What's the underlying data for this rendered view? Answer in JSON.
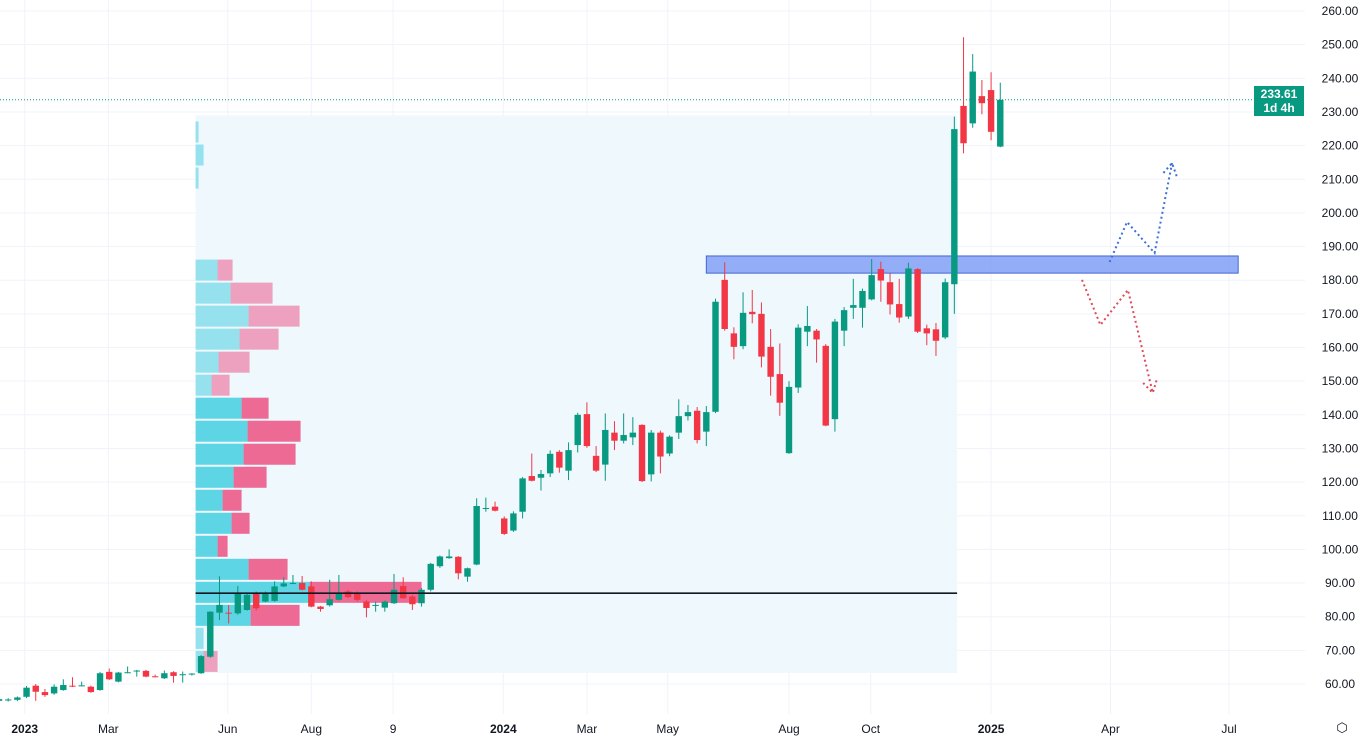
{
  "colors": {
    "up": "#089981",
    "down": "#f23645",
    "zone": "#8fa9f7",
    "profile_up": "#4dd0e1",
    "profile_down": "#ec5a8a",
    "region_bg": "#eef8fd",
    "projection_up": "#3d6fd8",
    "projection_down": "#e04a5a"
  },
  "price_badge": {
    "price": "233.61",
    "countdown": "1d 4h"
  },
  "settings_icon": "gear-hexagon-icon",
  "chart_data": {
    "type": "candlestick",
    "interval": "1W",
    "ylim": [
      60,
      260
    ],
    "y_ticks": [
      "60.00",
      "70.00",
      "80.00",
      "90.00",
      "100.00",
      "110.00",
      "120.00",
      "130.00",
      "140.00",
      "150.00",
      "160.00",
      "170.00",
      "180.00",
      "190.00",
      "200.00",
      "210.00",
      "220.00",
      "230.00",
      "240.00",
      "250.00",
      "260.00"
    ],
    "x_ticks": [
      {
        "label": "2023",
        "index": 2.8,
        "bold": true
      },
      {
        "label": "Mar",
        "index": 11.9
      },
      {
        "label": "Jun",
        "index": 24.9
      },
      {
        "label": "Aug",
        "index": 34
      },
      {
        "label": "9",
        "index": 42.9
      },
      {
        "label": "2024",
        "index": 54.9,
        "bold": true
      },
      {
        "label": "Mar",
        "index": 64
      },
      {
        "label": "May",
        "index": 72.8
      },
      {
        "label": "Aug",
        "index": 86
      },
      {
        "label": "Oct",
        "index": 94.9
      },
      {
        "label": "2025",
        "index": 108,
        "bold": true
      },
      {
        "label": "Apr",
        "index": 121
      },
      {
        "label": "Jul",
        "index": 133.9
      }
    ],
    "candles_ohlc": [
      [
        55,
        56,
        54.5,
        55.5
      ],
      [
        55.4,
        55.8,
        54.8,
        55.4
      ],
      [
        55.3,
        56.3,
        54.9,
        56
      ],
      [
        56.2,
        59.4,
        55.8,
        58.9
      ],
      [
        59.5,
        60,
        55,
        57.7
      ],
      [
        57.6,
        58.5,
        56.2,
        56.7
      ],
      [
        57.2,
        59.9,
        56.8,
        59.2
      ],
      [
        58.2,
        61.4,
        58,
        59.7
      ],
      [
        59.5,
        62,
        59.1,
        59.3
      ],
      [
        59.6,
        60.7,
        59.3,
        59.6
      ],
      [
        59.2,
        59.5,
        57.4,
        57.6
      ],
      [
        58.2,
        63.6,
        58,
        63.2
      ],
      [
        63.6,
        64.6,
        61.2,
        61.4
      ],
      [
        60.7,
        63.6,
        60.5,
        63.4
      ],
      [
        63.4,
        65.2,
        63.2,
        63.5
      ],
      [
        64,
        64.2,
        62.2,
        64
      ],
      [
        63.9,
        64.2,
        62,
        62.2
      ],
      [
        62.3,
        62.8,
        62,
        62.2
      ],
      [
        61.7,
        64,
        61.5,
        63.2
      ],
      [
        63.5,
        63.8,
        60.4,
        62.4
      ],
      [
        62.8,
        63.7,
        60.4,
        62.9
      ],
      [
        63,
        63.2,
        62.5,
        63.1
      ],
      [
        63.2,
        68.6,
        63,
        68.3
      ],
      [
        68.1,
        81.6,
        67.8,
        81.5
      ],
      [
        81.2,
        92,
        79,
        83.5
      ],
      [
        81.2,
        83.5,
        78,
        81
      ],
      [
        81,
        89.1,
        80.6,
        87
      ],
      [
        82,
        87,
        81.8,
        86.5
      ],
      [
        87,
        87.5,
        81.8,
        82.5
      ],
      [
        84.5,
        87.5,
        84.3,
        87
      ],
      [
        84.7,
        90.5,
        84.5,
        89
      ],
      [
        89,
        91.7,
        88.8,
        89.9
      ],
      [
        89.9,
        92.4,
        89.7,
        90
      ],
      [
        90,
        92.1,
        87.8,
        88
      ],
      [
        89,
        90.5,
        82.8,
        83
      ],
      [
        83,
        83.2,
        81.5,
        82.3
      ],
      [
        83.4,
        91,
        83,
        85.2
      ],
      [
        85,
        92.4,
        84.8,
        87
      ],
      [
        87.5,
        88,
        85.5,
        85.8
      ],
      [
        87,
        87.5,
        84.5,
        85
      ],
      [
        84.5,
        85,
        79.8,
        82.6
      ],
      [
        83.5,
        84.5,
        81.5,
        83.5
      ],
      [
        82.7,
        84.8,
        81.5,
        84.5
      ],
      [
        84,
        92.7,
        83.8,
        88
      ],
      [
        89.1,
        91.7,
        85.3,
        85.5
      ],
      [
        86,
        86.5,
        82,
        83.7
      ],
      [
        84,
        88.5,
        83,
        88
      ],
      [
        88,
        96,
        87.5,
        95.7
      ],
      [
        95,
        98.2,
        94.5,
        97.9
      ],
      [
        97.4,
        100,
        97.2,
        97.9
      ],
      [
        97.8,
        98,
        91.1,
        92.9
      ],
      [
        91.9,
        94.6,
        90.4,
        94.4
      ],
      [
        95.5,
        115.2,
        95.3,
        112.9
      ],
      [
        112.2,
        115.4,
        111.2,
        112.3
      ],
      [
        112.7,
        114.2,
        111.3,
        111.5
      ],
      [
        109.2,
        109.8,
        104.3,
        104.6
      ],
      [
        105.6,
        111.3,
        105.2,
        110.7
      ],
      [
        111.2,
        121.5,
        109.2,
        121.1
      ],
      [
        121.8,
        128.5,
        120.2,
        120.4
      ],
      [
        121.3,
        123.6,
        117.5,
        122.4
      ],
      [
        122.6,
        129.4,
        121.5,
        128.4
      ],
      [
        129,
        129.5,
        122.8,
        124.3
      ],
      [
        123.4,
        131.8,
        120.6,
        129.5
      ],
      [
        131,
        140.6,
        128.8,
        140
      ],
      [
        140.2,
        143.7,
        130.2,
        130.7
      ],
      [
        127.8,
        130.7,
        123,
        123.4
      ],
      [
        125.2,
        140.4,
        120.4,
        135.5
      ],
      [
        134.7,
        138.1,
        129.5,
        132.3
      ],
      [
        132.3,
        140.4,
        131.5,
        134
      ],
      [
        133.3,
        139.3,
        131,
        134.7
      ],
      [
        137,
        137.2,
        120,
        120.3
      ],
      [
        122.3,
        135.5,
        120.2,
        134.7
      ],
      [
        134.7,
        135.3,
        122.6,
        127.6
      ],
      [
        128.5,
        133.9,
        127.7,
        133.5
      ],
      [
        134.7,
        144.6,
        132.8,
        139.6
      ],
      [
        139.6,
        142.9,
        138.3,
        140.8
      ],
      [
        141.2,
        142.3,
        131.5,
        132.5
      ],
      [
        135,
        142.6,
        130.7,
        140.8
      ],
      [
        140.9,
        174.5,
        140.5,
        173.6
      ],
      [
        180.1,
        185.3,
        165,
        165.5
      ],
      [
        164.2,
        166,
        156.5,
        160.2
      ],
      [
        160.4,
        176.4,
        159.5,
        170.3
      ],
      [
        170.6,
        177.1,
        167.2,
        169.9
      ],
      [
        170,
        173.4,
        154.1,
        157.3
      ],
      [
        160.2,
        165.5,
        145.7,
        151.3
      ],
      [
        152.1,
        161.2,
        139.7,
        143.6
      ],
      [
        128.6,
        150,
        128.4,
        148.3
      ],
      [
        148.1,
        166.9,
        146.5,
        165.9
      ],
      [
        164.7,
        172.3,
        160.4,
        166.4
      ],
      [
        165,
        165.5,
        155.5,
        162.4
      ],
      [
        160.5,
        161,
        136.6,
        136.8
      ],
      [
        138.7,
        168.5,
        135,
        167.7
      ],
      [
        165,
        172,
        160.4,
        171.1
      ],
      [
        171.8,
        180.4,
        168.5,
        172.6
      ],
      [
        171.8,
        177.5,
        165.9,
        176.8
      ],
      [
        174.3,
        186.3,
        174,
        181.5
      ],
      [
        183.3,
        185.5,
        173.6,
        179.9
      ],
      [
        179.4,
        182,
        169.8,
        172.8
      ],
      [
        172.9,
        180.4,
        167.4,
        168.9
      ],
      [
        169.2,
        185.2,
        168.5,
        183.5
      ],
      [
        183.3,
        183.6,
        164.3,
        164.7
      ],
      [
        165.7,
        166.8,
        160.7,
        164.2
      ],
      [
        165.4,
        167.3,
        157.5,
        162
      ],
      [
        163,
        180.5,
        162.5,
        179.4
      ],
      [
        178.8,
        228.6,
        170,
        224.9
      ],
      [
        231.8,
        252.2,
        217.7,
        220.7
      ],
      [
        226.6,
        247.2,
        225.3,
        242
      ],
      [
        234.7,
        239.5,
        229.3,
        232.6
      ],
      [
        236.5,
        241.8,
        221.6,
        224.1
      ],
      [
        219.7,
        238.7,
        219.5,
        233.61
      ]
    ],
    "last_price": 233.61,
    "volume_profile": {
      "range_index": [
        21.4,
        104.3
      ],
      "price_range": [
        63.3,
        229
      ],
      "row_height_price": 6.84,
      "poc_price": 87,
      "rows": [
        {
          "up": 8,
          "down": 14,
          "value_area": false
        },
        {
          "up": 8,
          "down": 0,
          "value_area": false
        },
        {
          "up": 55,
          "down": 49,
          "value_area": true
        },
        {
          "up": 114,
          "down": 112,
          "value_area": true,
          "poc": true
        },
        {
          "up": 53,
          "down": 39,
          "value_area": true
        },
        {
          "up": 22,
          "down": 10,
          "value_area": true
        },
        {
          "up": 36,
          "down": 18,
          "value_area": true
        },
        {
          "up": 27,
          "down": 19,
          "value_area": true
        },
        {
          "up": 38,
          "down": 33,
          "value_area": true
        },
        {
          "up": 48,
          "down": 52,
          "value_area": true
        },
        {
          "up": 52,
          "down": 53,
          "value_area": true
        },
        {
          "up": 46,
          "down": 27,
          "value_area": true
        },
        {
          "up": 16,
          "down": 18,
          "value_area": false
        },
        {
          "up": 23,
          "down": 31,
          "value_area": false
        },
        {
          "up": 44,
          "down": 39,
          "value_area": false
        },
        {
          "up": 53,
          "down": 51,
          "value_area": false
        },
        {
          "up": 35,
          "down": 42,
          "value_area": false
        },
        {
          "up": 22,
          "down": 15,
          "value_area": false
        },
        {
          "up": 0,
          "down": 0,
          "value_area": false
        },
        {
          "up": 0,
          "down": 0,
          "value_area": false
        },
        {
          "up": 0,
          "down": 0,
          "value_area": false
        },
        {
          "up": 3,
          "down": 0,
          "value_area": false
        },
        {
          "up": 8,
          "down": 0,
          "value_area": false
        },
        {
          "up": 3,
          "down": 0,
          "value_area": false
        }
      ]
    },
    "resistance_zone": {
      "price_low": 182.1,
      "price_high": 187.2,
      "index_start": 77,
      "index_end": 134.9
    },
    "projections": [
      {
        "name": "bullish-path",
        "points": [
          [
            120.9,
            185.4
          ],
          [
            122.8,
            197.3
          ],
          [
            125.8,
            188.1
          ],
          [
            127.7,
            214.8
          ]
        ]
      },
      {
        "name": "bearish-path",
        "points": [
          [
            117.9,
            180.1
          ],
          [
            119.9,
            166.7
          ],
          [
            122.9,
            177.1
          ],
          [
            125.6,
            146.5
          ]
        ]
      }
    ]
  }
}
